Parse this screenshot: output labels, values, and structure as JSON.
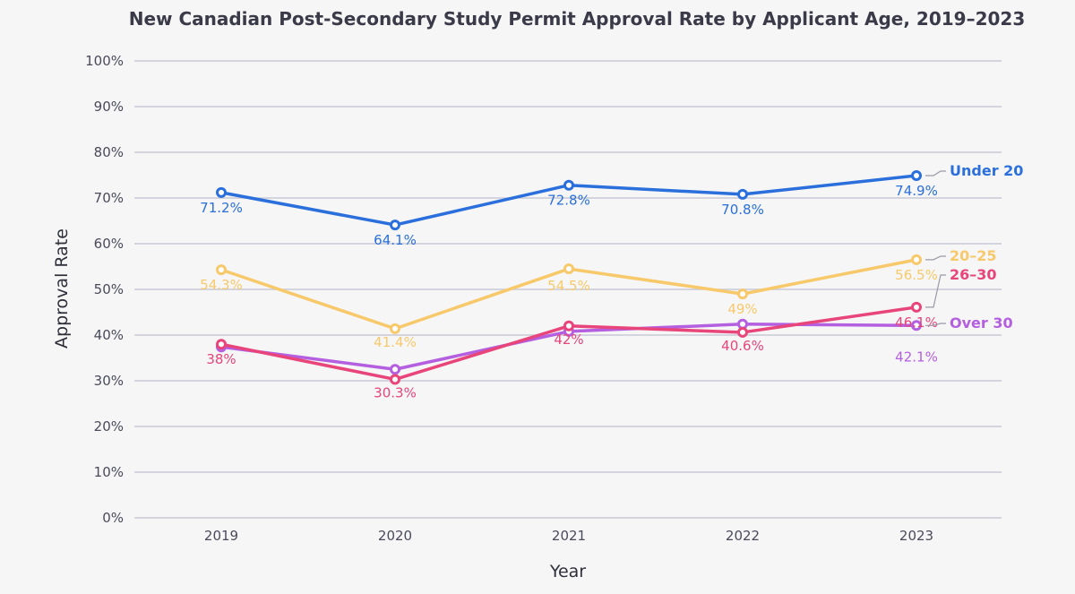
{
  "chart_data": {
    "type": "line",
    "title": "New Canadian Post-Secondary Study Permit Approval Rate by Applicant Age, 2019–2023",
    "xlabel": "Year",
    "ylabel": "Approval Rate",
    "categories": [
      "2019",
      "2020",
      "2021",
      "2022",
      "2023"
    ],
    "ylim": [
      0,
      100
    ],
    "yticks": [
      "0%",
      "10%",
      "20%",
      "30%",
      "40%",
      "50%",
      "60%",
      "70%",
      "80%",
      "90%",
      "100%"
    ],
    "grid": true,
    "series": [
      {
        "name": "Under 20",
        "color": "#2a6fdb",
        "values": [
          71.2,
          64.1,
          72.8,
          70.8,
          74.9
        ],
        "labels": [
          "71.2%",
          "64.1%",
          "72.8%",
          "70.8%",
          "74.9%"
        ]
      },
      {
        "name": "20–25",
        "color": "#f7c96b",
        "values": [
          54.3,
          41.4,
          54.5,
          49,
          56.5
        ],
        "labels": [
          "54.3%",
          "41.4%",
          "54.5%",
          "49%",
          "56.5%"
        ]
      },
      {
        "name": "26–30",
        "color": "#e8457a",
        "values": [
          38,
          30.3,
          42,
          40.6,
          46.1
        ],
        "labels": [
          "38%",
          "30.3%",
          "42%",
          "40.6%",
          "46.1%"
        ]
      },
      {
        "name": "Over 30",
        "color": "#b45fe0",
        "values": [
          37.4,
          32.5,
          40.8,
          42.4,
          42.1
        ],
        "labels": [
          "",
          "",
          "",
          "",
          "42.1%"
        ]
      }
    ]
  }
}
